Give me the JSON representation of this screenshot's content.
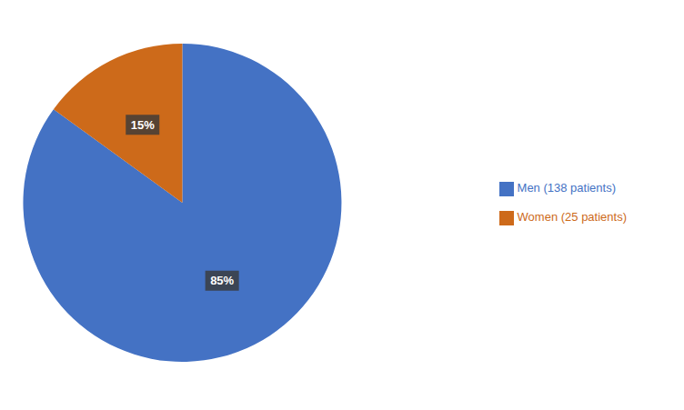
{
  "chart_data": {
    "type": "pie",
    "categories": [
      "Men (138 patients)",
      "Women (25 patients)"
    ],
    "values": [
      85,
      15
    ],
    "value_labels": [
      "85%",
      "15%"
    ],
    "data_labels": true,
    "colors": [
      "#4472C4",
      "#CD6A1A"
    ],
    "legend": "right"
  }
}
